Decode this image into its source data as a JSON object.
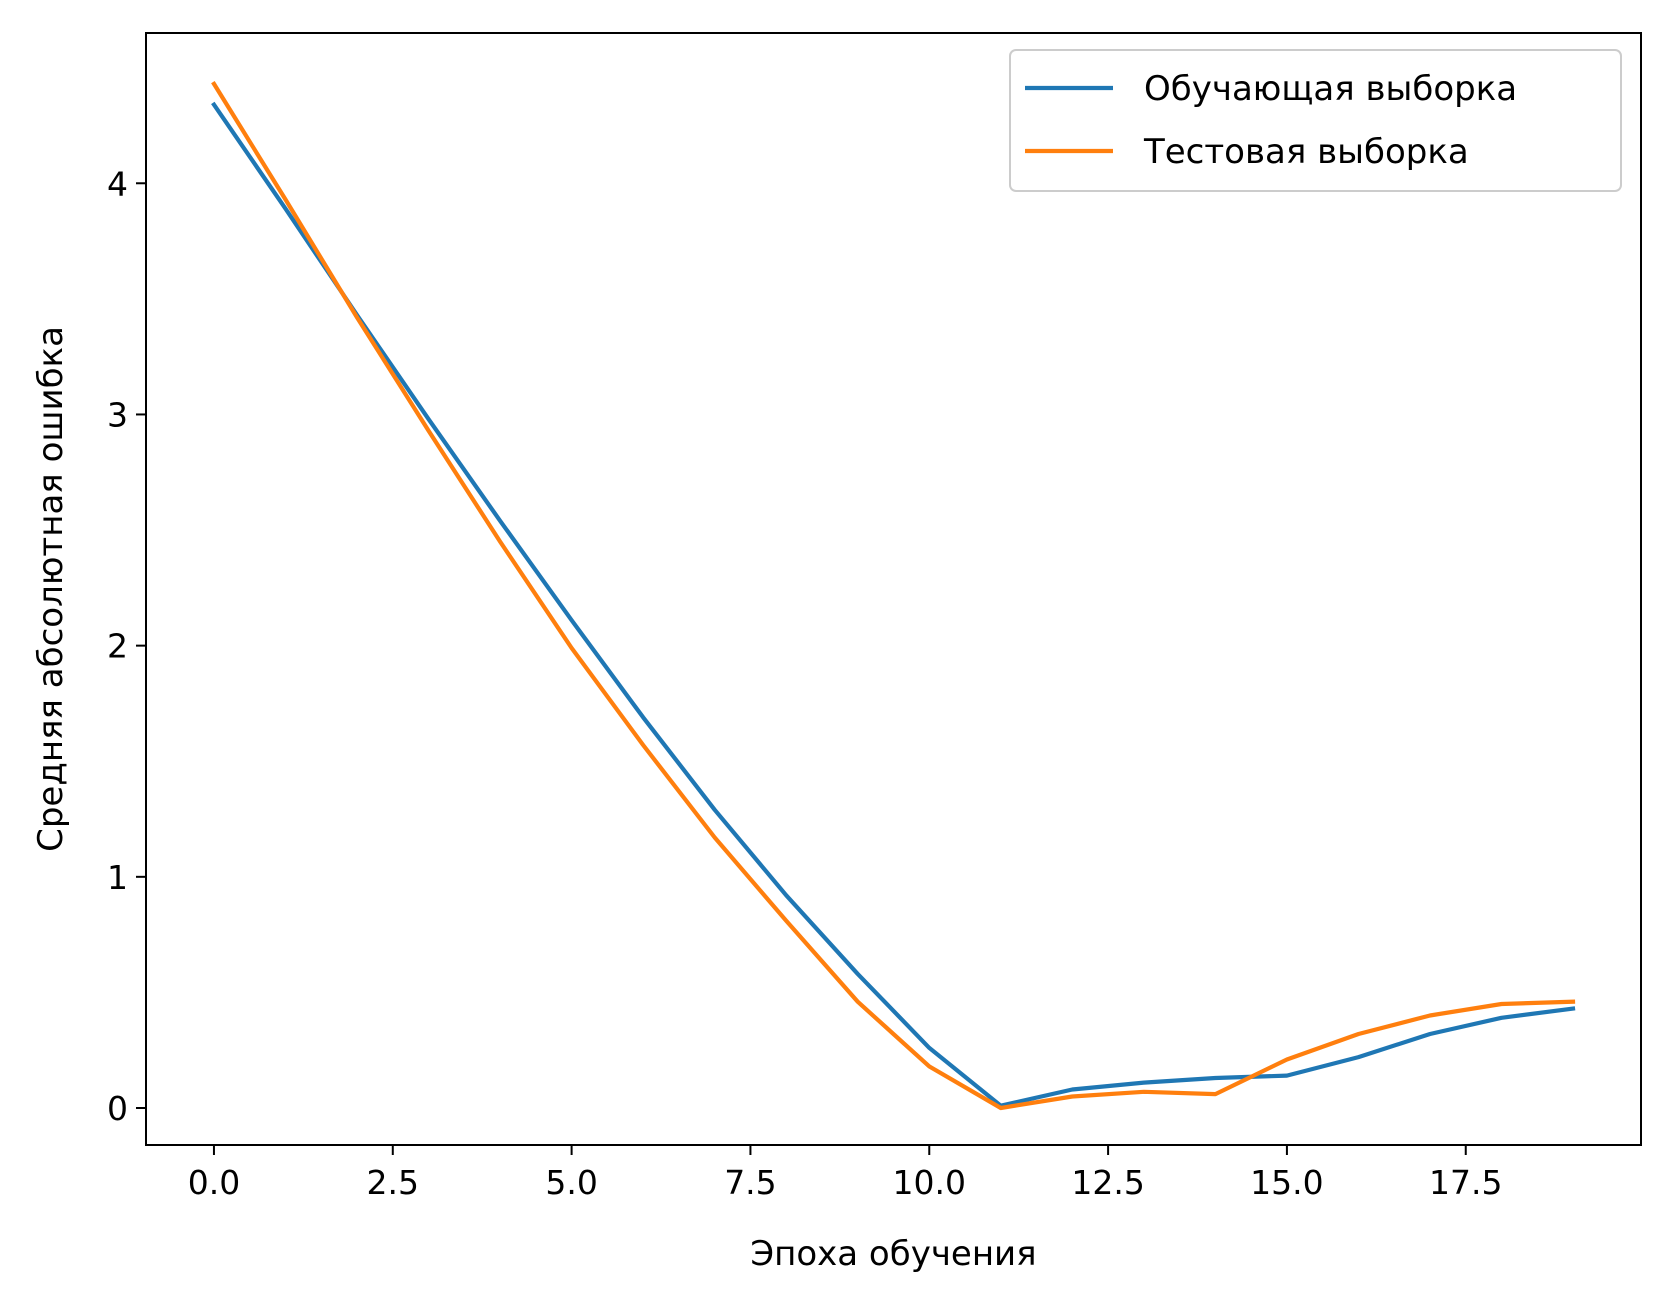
{
  "chart_data": {
    "type": "line",
    "title": "",
    "xlabel": "Эпоха обучения",
    "ylabel": "Средняя абсолютная ошибка",
    "xlim": [
      -0.95,
      19.95
    ],
    "ylim": [
      -0.16,
      4.65
    ],
    "xticks": [
      0.0,
      2.5,
      5.0,
      7.5,
      10.0,
      12.5,
      15.0,
      17.5
    ],
    "xtick_labels": [
      "0.0",
      "2.5",
      "5.0",
      "7.5",
      "10.0",
      "12.5",
      "15.0",
      "17.5"
    ],
    "yticks": [
      0,
      1,
      2,
      3,
      4
    ],
    "ytick_labels": [
      "0",
      "1",
      "2",
      "3",
      "4"
    ],
    "grid": false,
    "legend_position": "top-right",
    "x": [
      0,
      1,
      2,
      3,
      4,
      5,
      6,
      7,
      8,
      9,
      10,
      11,
      12,
      13,
      14,
      15,
      16,
      17,
      18,
      19
    ],
    "series": [
      {
        "name": "Обучающая выборка",
        "color": "#1f77b4",
        "values": [
          4.34,
          3.89,
          3.43,
          2.98,
          2.54,
          2.11,
          1.69,
          1.29,
          0.92,
          0.58,
          0.26,
          0.01,
          0.08,
          0.11,
          0.13,
          0.14,
          0.22,
          0.32,
          0.39,
          0.43
        ]
      },
      {
        "name": "Тестовая выборка",
        "color": "#ff7f0e",
        "values": [
          4.43,
          3.93,
          3.42,
          2.93,
          2.45,
          1.99,
          1.57,
          1.17,
          0.81,
          0.46,
          0.18,
          0.0,
          0.05,
          0.07,
          0.06,
          0.21,
          0.32,
          0.4,
          0.45,
          0.46
        ]
      }
    ]
  }
}
